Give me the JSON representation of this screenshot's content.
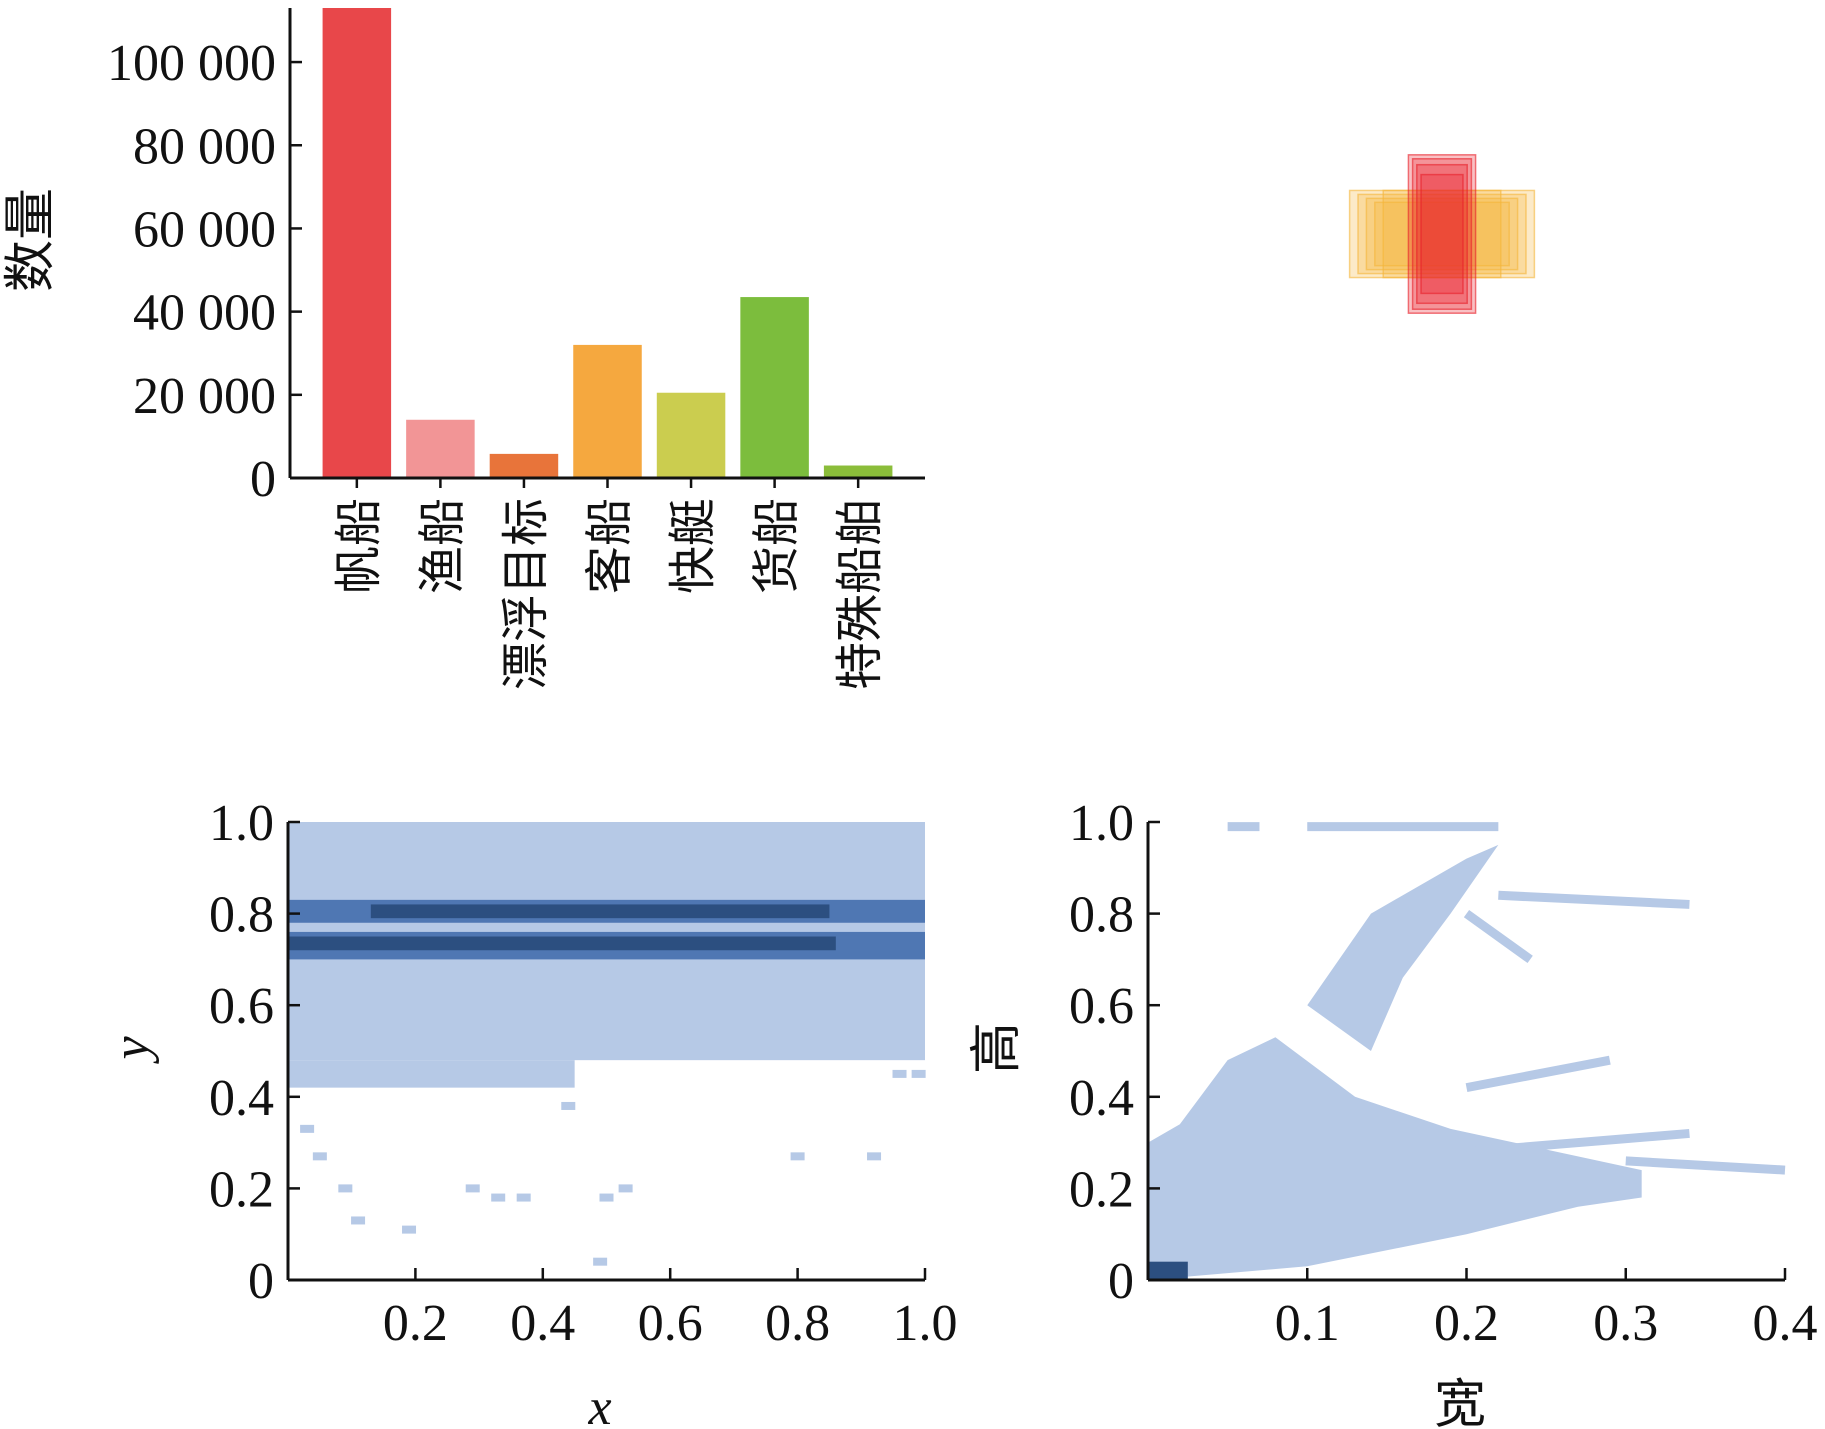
{
  "chart_data": [
    {
      "type": "bar",
      "ylabel": "数量",
      "categories": [
        "帆船",
        "渔船",
        "漂浮目标",
        "客船",
        "快艇",
        "货船",
        "特殊船舶"
      ],
      "values": [
        113000,
        14000,
        5800,
        32000,
        20500,
        43500,
        3000
      ],
      "colors": [
        "#e8474a",
        "#f29596",
        "#e8743a",
        "#f5a83f",
        "#cbcd4f",
        "#7cbd3d",
        "#8bbd3a"
      ],
      "ylim": [
        0,
        113000
      ],
      "yticks": [
        0,
        20000,
        40000,
        60000,
        80000,
        100000
      ],
      "ytick_labels": [
        "0",
        "20 000",
        "40 000",
        "60 000",
        "80 000",
        "100 000"
      ]
    },
    {
      "type": "scatter",
      "note_type": "overlaid bounding boxes",
      "box_sets": [
        {
          "color": "#f5b53b",
          "center": [
            0.5,
            0.5
          ],
          "widths": [
            0.22,
            0.2,
            0.18,
            0.16,
            0.14
          ],
          "heights": [
            0.22,
            0.2,
            0.18,
            0.16
          ]
        },
        {
          "color": "#e8202a",
          "center": [
            0.5,
            0.5
          ],
          "widths": [
            0.08,
            0.07,
            0.06,
            0.05
          ],
          "heights": [
            0.4,
            0.38,
            0.35,
            0.3
          ]
        }
      ]
    },
    {
      "type": "heatmap",
      "xlabel": "x",
      "ylabel": "y",
      "xlim": [
        0,
        1
      ],
      "ylim": [
        0,
        1
      ],
      "xticks": [
        0.2,
        0.4,
        0.6,
        0.8,
        1.0
      ],
      "xtick_labels": [
        "0.2",
        "0.4",
        "0.6",
        "0.8",
        "1.0"
      ],
      "yticks": [
        0,
        0.2,
        0.4,
        0.6,
        0.8,
        1.0
      ],
      "ytick_labels": [
        "0",
        "0.2",
        "0.4",
        "0.6",
        "0.8",
        "1.0"
      ],
      "bands": [
        {
          "x": [
            0,
            1
          ],
          "y": [
            0.48,
            1.0
          ],
          "level": 1
        },
        {
          "x": [
            0,
            0.45
          ],
          "y": [
            0.42,
            0.48
          ],
          "level": 1
        },
        {
          "x": [
            0,
            1
          ],
          "y": [
            0.78,
            0.83
          ],
          "level": 3
        },
        {
          "x": [
            0.13,
            0.85
          ],
          "y": [
            0.79,
            0.82
          ],
          "level": 4
        },
        {
          "x": [
            0,
            1
          ],
          "y": [
            0.7,
            0.76
          ],
          "level": 3
        },
        {
          "x": [
            0,
            0.86
          ],
          "y": [
            0.72,
            0.75
          ],
          "level": 4
        }
      ],
      "sparse_points": [
        [
          0.03,
          0.33
        ],
        [
          0.05,
          0.27
        ],
        [
          0.09,
          0.2
        ],
        [
          0.11,
          0.13
        ],
        [
          0.19,
          0.11
        ],
        [
          0.29,
          0.2
        ],
        [
          0.33,
          0.18
        ],
        [
          0.37,
          0.18
        ],
        [
          0.44,
          0.38
        ],
        [
          0.49,
          0.04
        ],
        [
          0.5,
          0.18
        ],
        [
          0.53,
          0.2
        ],
        [
          0.8,
          0.27
        ],
        [
          0.92,
          0.27
        ],
        [
          0.99,
          0.45
        ],
        [
          0.96,
          0.45
        ]
      ]
    },
    {
      "type": "heatmap",
      "xlabel": "宽",
      "ylabel": "高",
      "xlim": [
        0,
        0.4
      ],
      "ylim": [
        0,
        1
      ],
      "xticks": [
        0.1,
        0.2,
        0.3,
        0.4
      ],
      "xtick_labels": [
        "0.1",
        "0.2",
        "0.3",
        "0.4"
      ],
      "yticks": [
        0,
        0.2,
        0.4,
        0.6,
        0.8,
        1.0
      ],
      "ytick_labels": [
        "0",
        "0.2",
        "0.4",
        "0.6",
        "0.8",
        "1.0"
      ],
      "polygons": [
        [
          [
            0,
            0
          ],
          [
            0.1,
            0.03
          ],
          [
            0.2,
            0.1
          ],
          [
            0.27,
            0.16
          ],
          [
            0.31,
            0.18
          ],
          [
            0.31,
            0.24
          ],
          [
            0.19,
            0.33
          ],
          [
            0.13,
            0.4
          ],
          [
            0.08,
            0.53
          ],
          [
            0.05,
            0.48
          ],
          [
            0.02,
            0.34
          ],
          [
            0,
            0.3
          ]
        ],
        [
          [
            0.1,
            0.6
          ],
          [
            0.14,
            0.8
          ],
          [
            0.2,
            0.92
          ],
          [
            0.22,
            0.95
          ],
          [
            0.19,
            0.8
          ],
          [
            0.16,
            0.66
          ],
          [
            0.14,
            0.5
          ],
          [
            0.12,
            0.55
          ]
        ]
      ],
      "segments": [
        [
          [
            0.05,
            0.99
          ],
          [
            0.07,
            0.99
          ]
        ],
        [
          [
            0.1,
            0.99
          ],
          [
            0.22,
            0.99
          ]
        ],
        [
          [
            0.22,
            0.84
          ],
          [
            0.34,
            0.82
          ]
        ],
        [
          [
            0.2,
            0.8
          ],
          [
            0.24,
            0.7
          ]
        ],
        [
          [
            0.2,
            0.42
          ],
          [
            0.29,
            0.48
          ]
        ],
        [
          [
            0.2,
            0.28
          ],
          [
            0.34,
            0.32
          ]
        ],
        [
          [
            0.3,
            0.26
          ],
          [
            0.4,
            0.24
          ]
        ]
      ],
      "dense_corner": {
        "x": [
          0,
          0.025
        ],
        "y": [
          0,
          0.04
        ]
      }
    }
  ]
}
